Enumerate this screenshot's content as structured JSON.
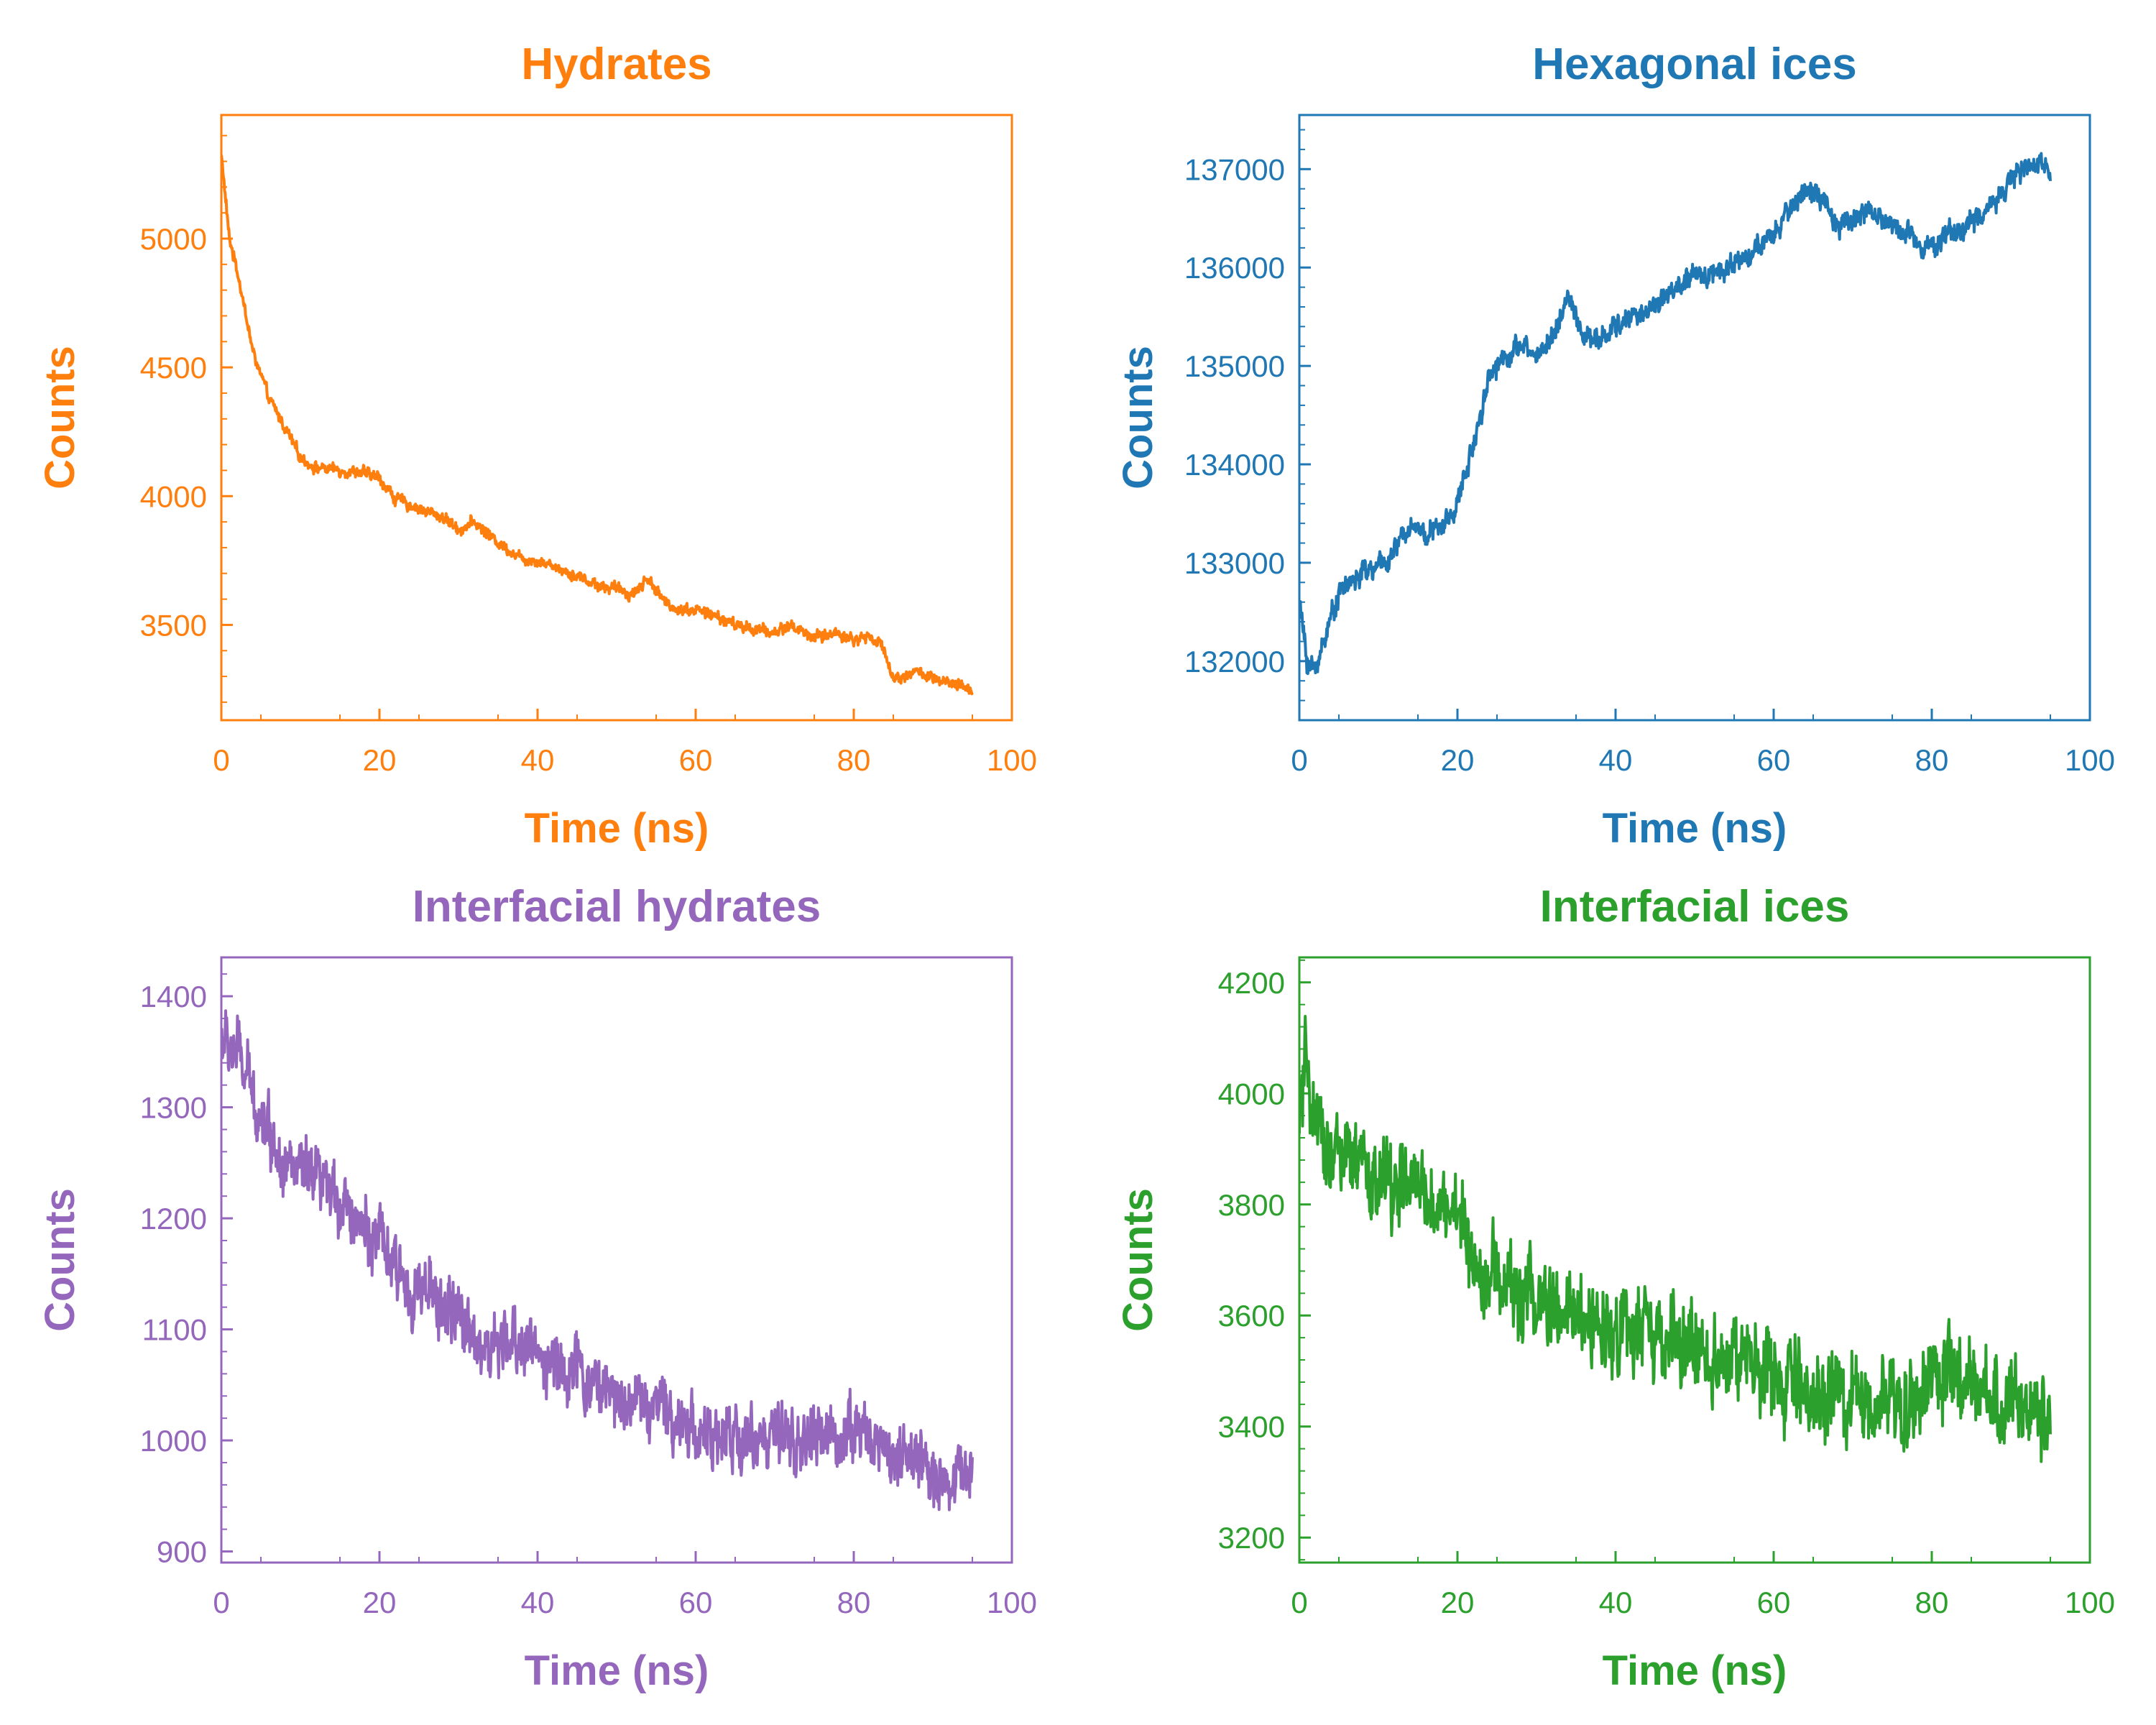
{
  "chart_data": [
    {
      "type": "line",
      "title": "Hydrates",
      "xlabel": "Time (ns)",
      "ylabel": "Counts",
      "color": "#ff7f0e",
      "xlim": [
        0,
        100
      ],
      "ylim": [
        3130,
        5480
      ],
      "xticks": [
        0,
        20,
        40,
        60,
        80,
        100
      ],
      "yticks": [
        3500,
        4000,
        4500,
        5000
      ],
      "grid": false,
      "series": [
        {
          "x": [
            0,
            1,
            2,
            3,
            4,
            5,
            6,
            8,
            10,
            12,
            15,
            18,
            20,
            22,
            25,
            28,
            30,
            32,
            35,
            38,
            40,
            42,
            45,
            48,
            50,
            52,
            54,
            56,
            58,
            60,
            62,
            65,
            68,
            70,
            72,
            75,
            78,
            80,
            82,
            84,
            85,
            86,
            88,
            90,
            92,
            95
          ],
          "values": [
            5330,
            5000,
            4880,
            4720,
            4560,
            4470,
            4380,
            4270,
            4150,
            4110,
            4100,
            4090,
            4070,
            3990,
            3950,
            3920,
            3870,
            3900,
            3820,
            3760,
            3750,
            3730,
            3690,
            3650,
            3640,
            3620,
            3680,
            3590,
            3560,
            3560,
            3540,
            3500,
            3480,
            3470,
            3500,
            3450,
            3470,
            3440,
            3460,
            3400,
            3290,
            3300,
            3320,
            3290,
            3270,
            3250
          ]
        }
      ]
    },
    {
      "type": "line",
      "title": "Hexagonal ices",
      "xlabel": "Time (ns)",
      "ylabel": "Counts",
      "color": "#1f77b4",
      "xlim": [
        0,
        100
      ],
      "ylim": [
        131400,
        137550
      ],
      "xticks": [
        0,
        20,
        40,
        60,
        80,
        100
      ],
      "yticks": [
        132000,
        133000,
        134000,
        135000,
        136000,
        137000
      ],
      "grid": false,
      "series": [
        {
          "x": [
            0,
            1,
            2,
            3,
            5,
            8,
            10,
            12,
            14,
            16,
            18,
            20,
            22,
            24,
            26,
            28,
            30,
            32,
            34,
            36,
            38,
            40,
            42,
            44,
            46,
            48,
            50,
            52,
            54,
            56,
            58,
            60,
            62,
            64,
            66,
            68,
            70,
            72,
            74,
            76,
            78,
            80,
            82,
            84,
            86,
            88,
            90,
            92,
            95
          ],
          "values": [
            132600,
            132000,
            131900,
            132200,
            132700,
            132900,
            132950,
            133100,
            133400,
            133300,
            133350,
            133600,
            134200,
            134900,
            135100,
            135200,
            135100,
            135300,
            135700,
            135300,
            135250,
            135400,
            135500,
            135550,
            135700,
            135800,
            135900,
            135950,
            136000,
            136100,
            136200,
            136300,
            136600,
            136800,
            136700,
            136400,
            136500,
            136600,
            136450,
            136400,
            136300,
            136200,
            136350,
            136400,
            136500,
            136700,
            136900,
            137000,
            137050
          ]
        }
      ]
    },
    {
      "type": "line",
      "title": "Interfacial hydrates",
      "xlabel": "Time (ns)",
      "ylabel": "Counts",
      "color": "#9467bd",
      "xlim": [
        0,
        100
      ],
      "ylim": [
        890,
        1435
      ],
      "xticks": [
        0,
        20,
        40,
        60,
        80,
        100
      ],
      "yticks": [
        900,
        1000,
        1100,
        1200,
        1300,
        1400
      ],
      "grid": false,
      "series": [
        {
          "x": [
            0,
            2,
            4,
            6,
            8,
            10,
            12,
            14,
            16,
            18,
            20,
            22,
            24,
            26,
            28,
            30,
            32,
            33,
            35,
            38,
            40,
            42,
            45,
            48,
            50,
            52,
            55,
            58,
            60,
            62,
            65,
            68,
            70,
            72,
            75,
            78,
            80,
            82,
            85,
            88,
            90,
            92,
            95
          ],
          "values": [
            1360,
            1350,
            1310,
            1280,
            1250,
            1240,
            1230,
            1220,
            1215,
            1190,
            1180,
            1150,
            1140,
            1130,
            1120,
            1110,
            1100,
            1080,
            1080,
            1090,
            1080,
            1070,
            1060,
            1050,
            1040,
            1040,
            1030,
            1020,
            1010,
            1000,
            1000,
            1005,
            1000,
            995,
            1000,
            1005,
            1010,
            1005,
            990,
            980,
            970,
            965,
            975
          ]
        }
      ]
    },
    {
      "type": "line",
      "title": "Interfacial ices",
      "xlabel": "Time (ns)",
      "ylabel": "Counts",
      "color": "#2ca02c",
      "xlim": [
        0,
        100
      ],
      "ylim": [
        3155,
        4245
      ],
      "xticks": [
        0,
        20,
        40,
        60,
        80,
        100
      ],
      "yticks": [
        3200,
        3400,
        3600,
        3800,
        4000,
        4200
      ],
      "grid": false,
      "series": [
        {
          "x": [
            0,
            1,
            2,
            4,
            6,
            8,
            10,
            12,
            14,
            16,
            18,
            20,
            22,
            25,
            28,
            30,
            32,
            35,
            38,
            40,
            42,
            45,
            48,
            50,
            52,
            55,
            58,
            60,
            62,
            65,
            68,
            70,
            72,
            75,
            78,
            80,
            82,
            85,
            88,
            90,
            92,
            95
          ],
          "values": [
            3950,
            4050,
            3920,
            3900,
            3880,
            3860,
            3840,
            3840,
            3830,
            3810,
            3800,
            3790,
            3700,
            3660,
            3640,
            3630,
            3600,
            3600,
            3580,
            3590,
            3570,
            3560,
            3540,
            3540,
            3530,
            3520,
            3500,
            3480,
            3470,
            3460,
            3450,
            3440,
            3440,
            3450,
            3460,
            3490,
            3480,
            3460,
            3450,
            3440,
            3430,
            3420
          ]
        }
      ]
    }
  ]
}
